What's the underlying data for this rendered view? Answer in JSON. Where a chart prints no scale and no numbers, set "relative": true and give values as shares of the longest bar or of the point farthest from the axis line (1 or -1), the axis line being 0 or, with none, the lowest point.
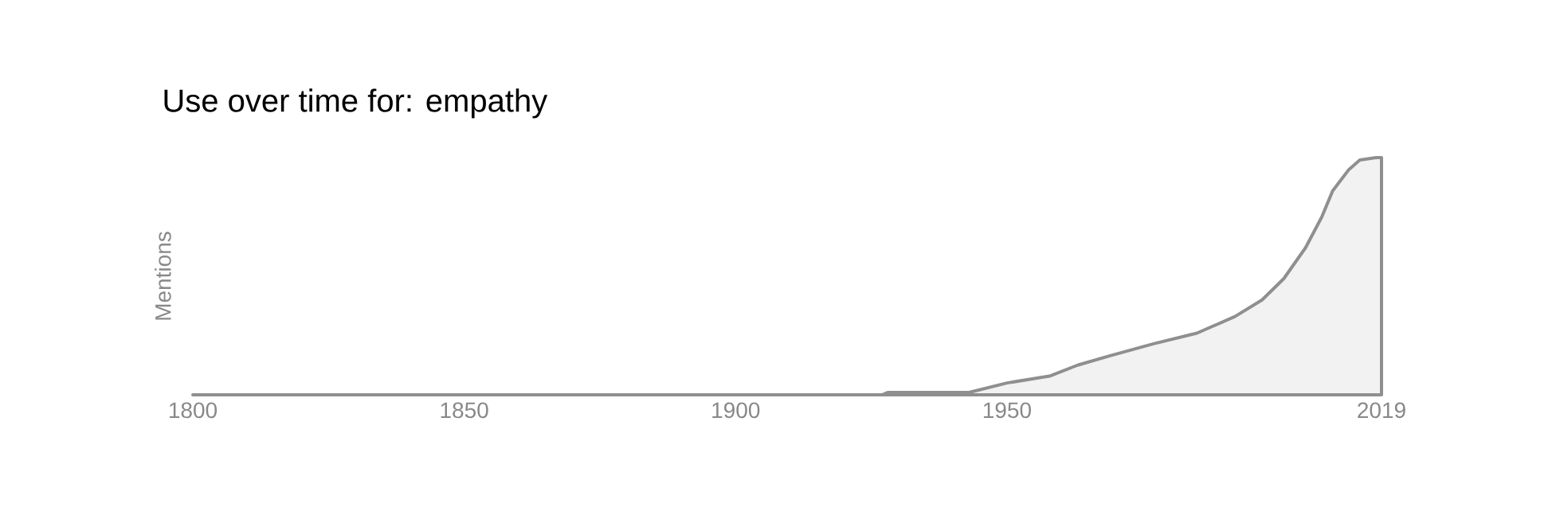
{
  "chart_data": {
    "type": "area",
    "title": "Use over time for: empathy",
    "ylabel": "Mentions",
    "relative": true,
    "xlim": [
      1800,
      2019
    ],
    "xticks": [
      1800,
      1850,
      1900,
      1950,
      2019
    ],
    "grid": false,
    "series": [
      {
        "color": "#8f8f8f",
        "x": [
          1800,
          1927,
          1928,
          1943,
          1950,
          1958,
          1963,
          1969,
          1977,
          1985,
          1992,
          1997,
          2001,
          2005,
          2008,
          2010,
          2013,
          2015,
          2018,
          2019
        ],
        "values": [
          0,
          0,
          0.01,
          0.01,
          0.05,
          0.08,
          0.125,
          0.165,
          0.215,
          0.26,
          0.33,
          0.4,
          0.49,
          0.62,
          0.75,
          0.86,
          0.95,
          0.99,
          1,
          1
        ]
      }
    ]
  }
}
